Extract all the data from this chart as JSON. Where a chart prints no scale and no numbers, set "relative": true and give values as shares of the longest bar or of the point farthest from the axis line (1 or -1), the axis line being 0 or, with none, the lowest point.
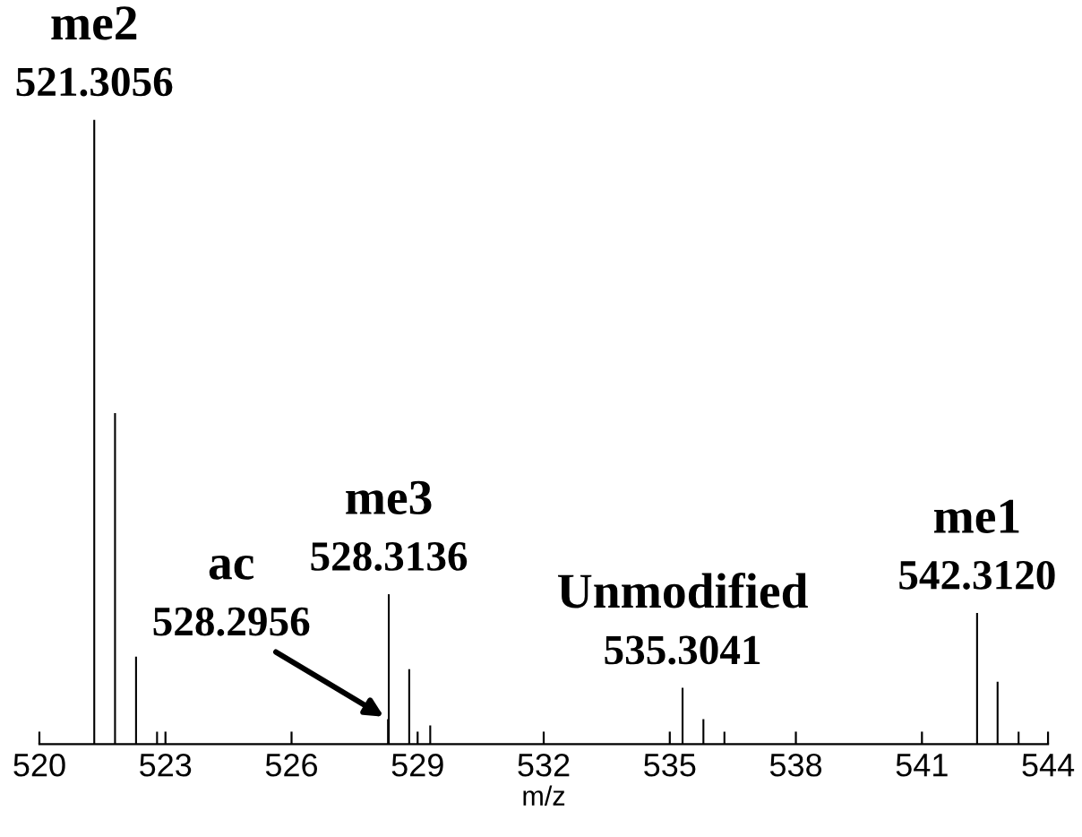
{
  "chart_data": {
    "type": "bar",
    "relative": true,
    "xlabel": "m/z",
    "x": [
      521.3056,
      521.8,
      522.3,
      522.8,
      528.2956,
      528.3136,
      528.8,
      529.3,
      535.3041,
      535.8,
      536.3,
      542.312,
      542.8,
      543.3
    ],
    "values": [
      1.0,
      0.53,
      0.14,
      0.02,
      0.04,
      0.24,
      0.12,
      0.03,
      0.09,
      0.04,
      0.02,
      0.21,
      0.1,
      0.02
    ],
    "color": "#000000",
    "xlim": [
      520,
      544
    ],
    "xticks": [
      520,
      523,
      526,
      529,
      532,
      535,
      538,
      541,
      544
    ],
    "grid": false,
    "legend": false,
    "annotations": [
      {
        "text": "me2",
        "x": 521.3056,
        "y": 1.0
      },
      {
        "text": "521.3056",
        "x": 521.3056,
        "y": 1.0
      },
      "ac",
      {
        "text": "528.2956",
        "x": 528.2956,
        "y": 0.04
      },
      {
        "text": "me3",
        "x": 528.3136,
        "y": 0.24
      },
      {
        "text": "528.3136",
        "x": 528.3136,
        "y": 0.24
      },
      {
        "text": "Unmodified",
        "x": 535.3041,
        "y": 0.09
      },
      {
        "text": "535.3041",
        "x": 535.3041,
        "y": 0.09
      },
      {
        "text": "me1",
        "x": 542.312,
        "y": 0.21
      },
      {
        "text": "542.3120",
        "x": 542.312,
        "y": 0.21
      }
    ]
  }
}
